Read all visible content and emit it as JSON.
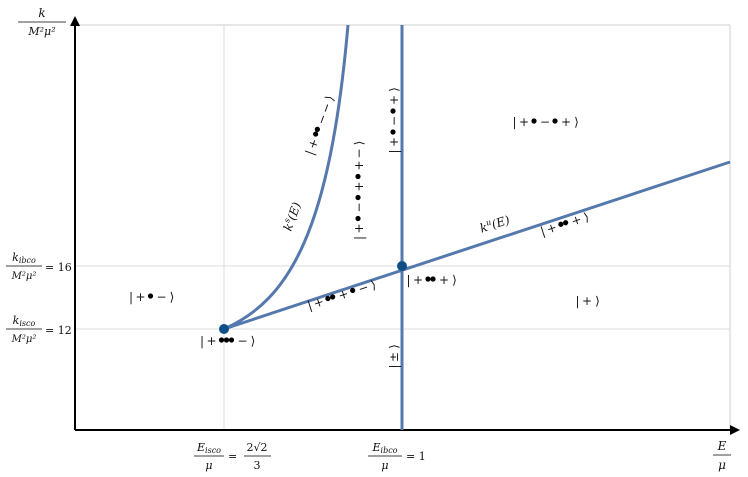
{
  "colors": {
    "curve": "#5578ad",
    "point": "#0f4f87",
    "axis": "#000000",
    "grid": "#d8d8d8",
    "dot": "#000000"
  },
  "axes": {
    "x_label_num": "E",
    "x_label_den": "μ",
    "y_label_num": "k",
    "y_label_den": "M²μ²"
  },
  "ticks": {
    "x_isco": {
      "num": "E",
      "num_sub": "isco",
      "den": "μ",
      "rhs_prefix": "= ",
      "rhs_num": "2√2",
      "rhs_den": "3"
    },
    "x_ibco": {
      "num": "E",
      "num_sub": "ibco",
      "den": "μ",
      "rhs": "= 1"
    },
    "y_ibco": {
      "num": "k",
      "num_sub": "ibco",
      "den": "M²μ²",
      "rhs": "= 16"
    },
    "y_isco": {
      "num": "k",
      "num_sub": "isco",
      "den": "M²μ²",
      "rhs": "= 12"
    }
  },
  "curve_labels": {
    "ks": {
      "base": "k",
      "sup": "s",
      "arg": "(E)"
    },
    "ku": {
      "base": "k",
      "sup": "u",
      "arg": "(E)"
    }
  },
  "regions": [
    {
      "id": "left",
      "seq": [
        "|",
        "+",
        "•",
        "−",
        "⟩"
      ]
    },
    {
      "id": "upper-mid",
      "seq": [
        "|",
        "+",
        "••",
        "−",
        "−",
        "⟩"
      ]
    },
    {
      "id": "middle",
      "seq": [
        "|",
        "+",
        "•",
        "−",
        "•",
        "+",
        "•",
        "+",
        "−",
        "⟩"
      ]
    },
    {
      "id": "upper-right-vert",
      "seq": [
        "|",
        "+",
        "•",
        "−",
        "•",
        "+",
        "⟩"
      ]
    },
    {
      "id": "top-right",
      "seq": [
        "|",
        "+",
        "•",
        "−",
        "•",
        "+",
        "⟩"
      ]
    },
    {
      "id": "ku-right",
      "seq": [
        "|",
        "+",
        "••",
        "+",
        "⟩"
      ]
    },
    {
      "id": "ibco-point",
      "seq": [
        "|",
        "+",
        "••",
        "+",
        "⟩"
      ]
    },
    {
      "id": "lower-mid",
      "seq": [
        "|",
        "+",
        "••",
        "+",
        "•",
        "−",
        "⟩"
      ]
    },
    {
      "id": "isco-point",
      "seq": [
        "|",
        "+",
        "•••",
        "−",
        "⟩"
      ]
    },
    {
      "id": "right",
      "seq": [
        "|",
        "+",
        "⟩"
      ]
    },
    {
      "id": "bottom",
      "seq": [
        "|",
        "±",
        "⟩"
      ]
    }
  ]
}
